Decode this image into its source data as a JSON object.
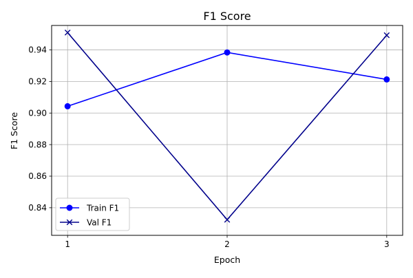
{
  "chart_data": {
    "type": "line",
    "title": "F1 Score",
    "xlabel": "Epoch",
    "ylabel": "F1 Score",
    "x": [
      1,
      2,
      3
    ],
    "xticks": [
      "1",
      "2",
      "3"
    ],
    "xlim": [
      0.9,
      3.1
    ],
    "ylim": [
      0.8225,
      0.9555
    ],
    "yticks": [
      0.84,
      0.86,
      0.88,
      0.9,
      0.92,
      0.94
    ],
    "ytick_labels": [
      "0.84",
      "0.86",
      "0.88",
      "0.90",
      "0.92",
      "0.94"
    ],
    "grid": true,
    "legend_position": "bottom-left",
    "series": [
      {
        "name": "Train F1",
        "values": [
          0.9043,
          0.9384,
          0.9213
        ],
        "color": "#0000ff",
        "marker": "circle"
      },
      {
        "name": "Val F1",
        "values": [
          0.951,
          0.8324,
          0.9493
        ],
        "color": "#00008b",
        "marker": "x"
      }
    ]
  }
}
